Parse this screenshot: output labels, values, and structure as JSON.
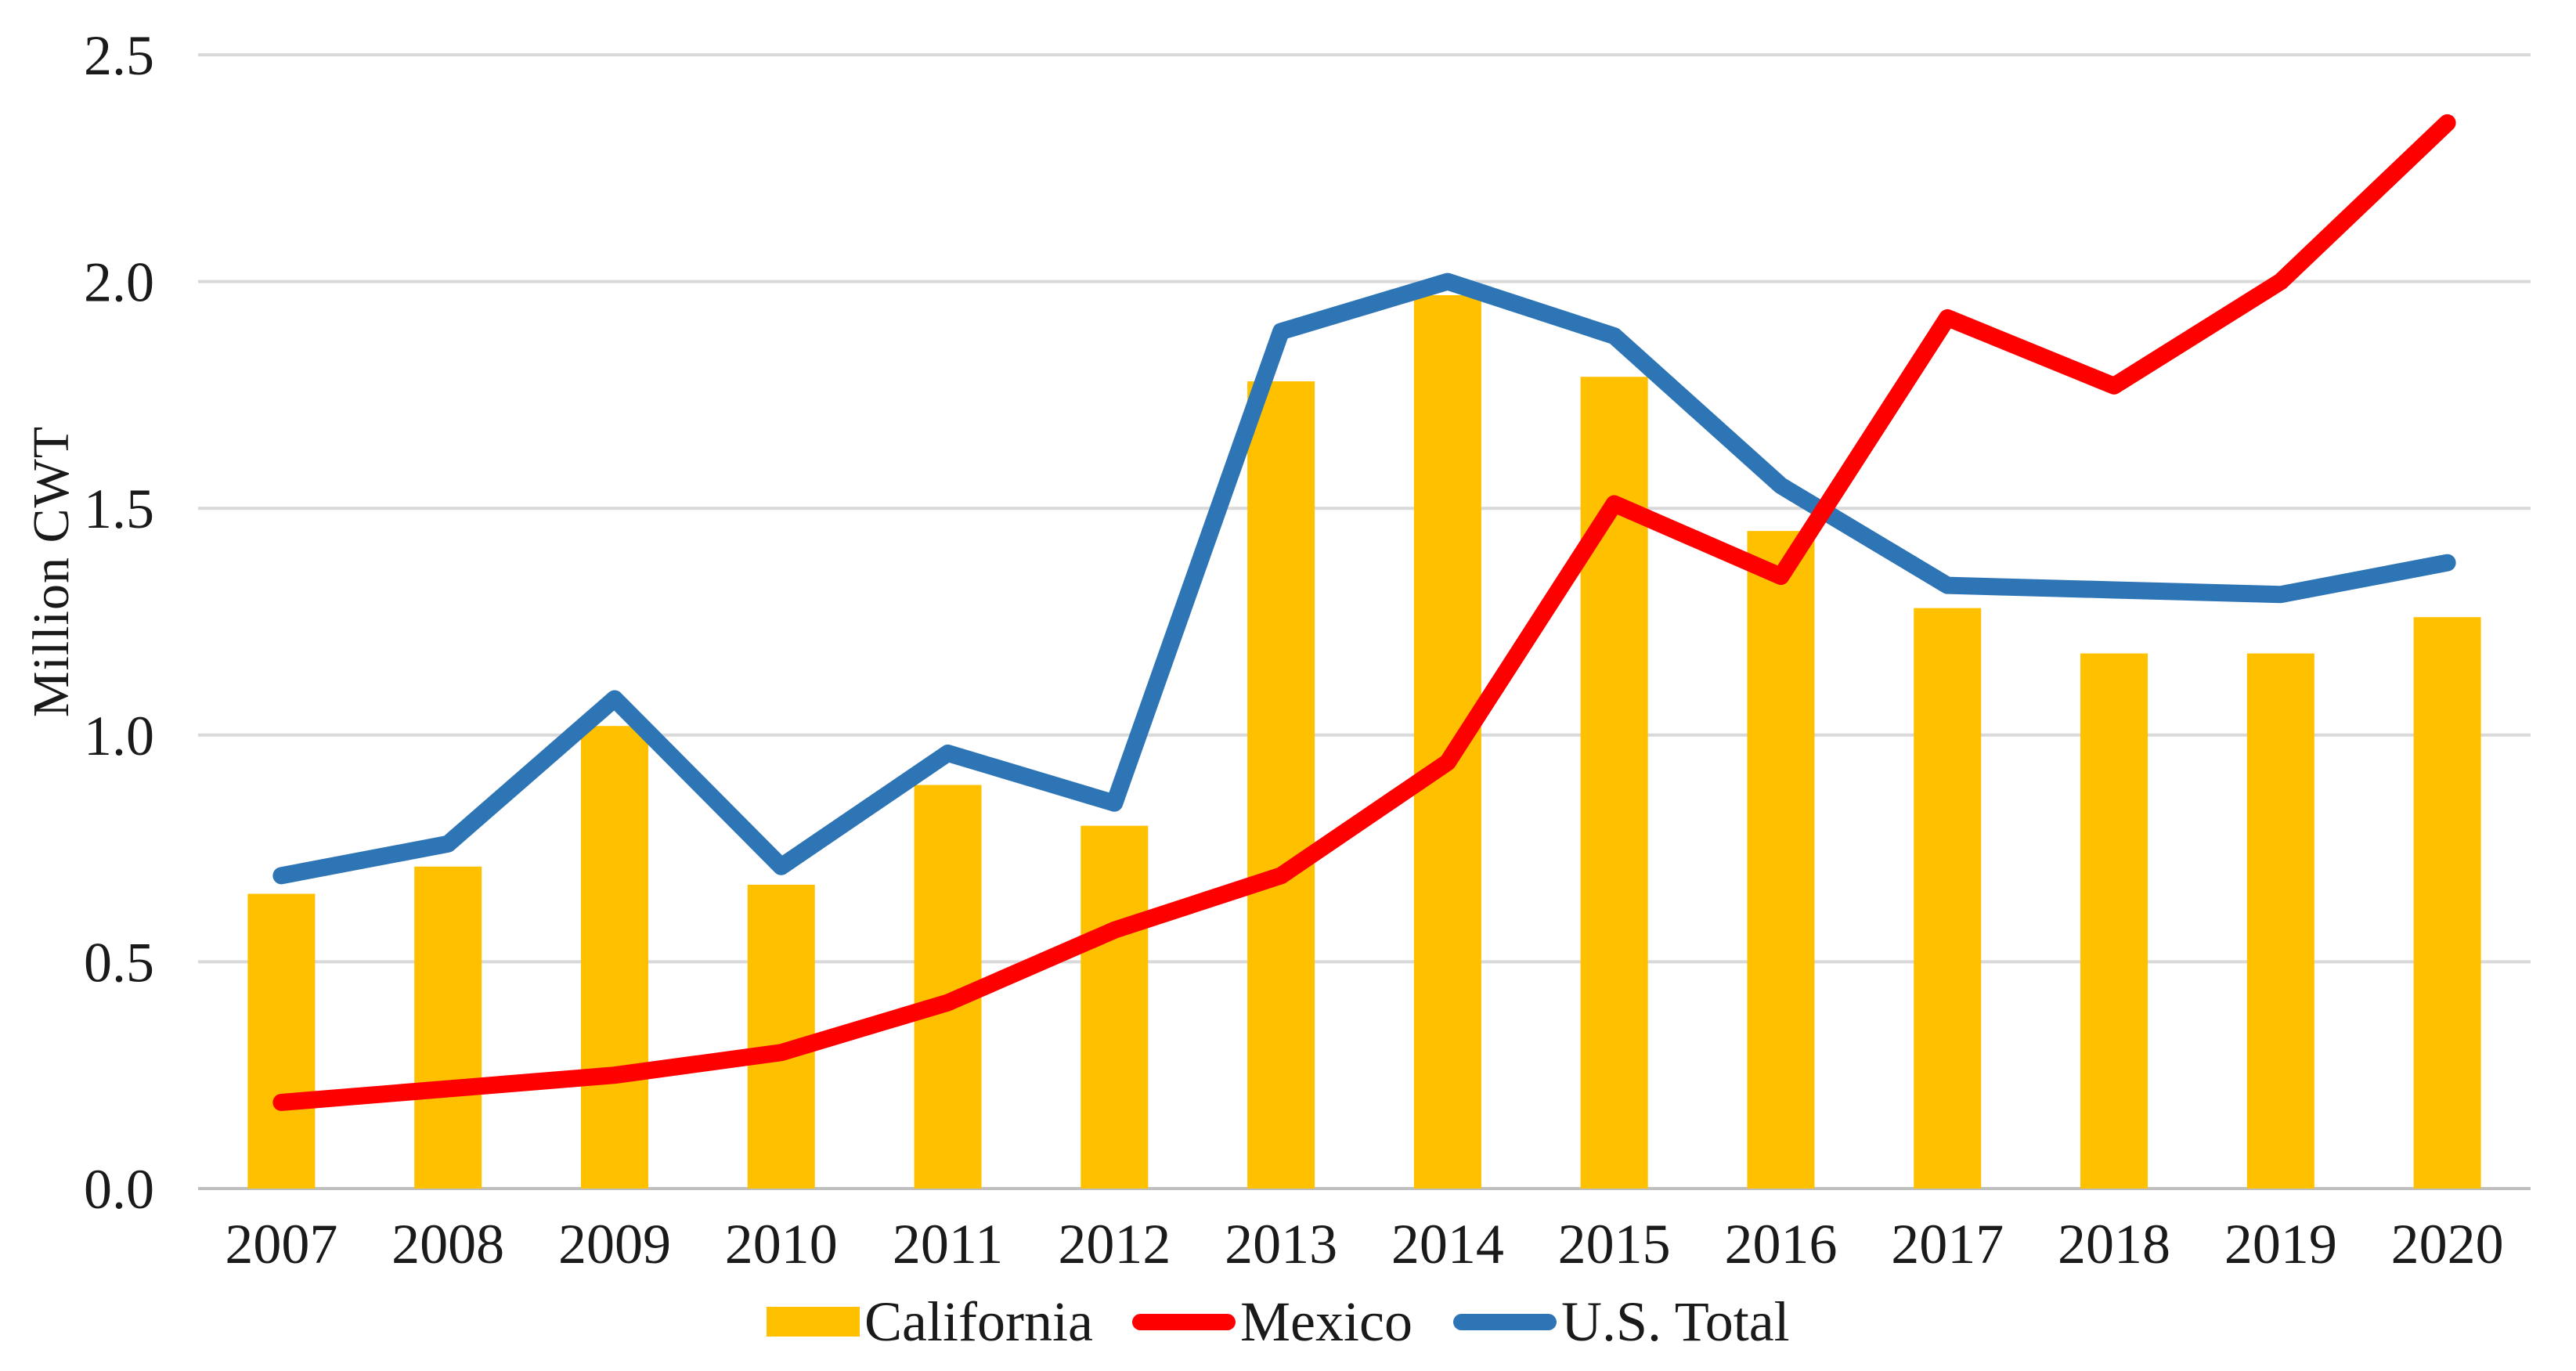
{
  "chart_data": {
    "type": "combo",
    "title": "",
    "ylabel": "Million CWT",
    "xlabel": "",
    "ylim": [
      0,
      2.5
    ],
    "ytick_step": 0.5,
    "ytick_labels": [
      "0.0",
      "0.5",
      "1.0",
      "1.5",
      "2.0",
      "2.5"
    ],
    "grid": "horizontal",
    "legend_position": "bottom",
    "categories": [
      "2007",
      "2008",
      "2009",
      "2010",
      "2011",
      "2012",
      "2013",
      "2014",
      "2015",
      "2016",
      "2017",
      "2018",
      "2019",
      "2020"
    ],
    "series": [
      {
        "name": "California",
        "type": "bar",
        "color": "#FFC000",
        "values": [
          0.65,
          0.71,
          1.02,
          0.67,
          0.89,
          0.8,
          1.78,
          1.97,
          1.79,
          1.45,
          1.28,
          1.18,
          1.18,
          1.26
        ]
      },
      {
        "name": "Mexico",
        "type": "line",
        "color": "#FF0000",
        "values": [
          0.19,
          0.22,
          0.25,
          0.3,
          0.41,
          0.57,
          0.69,
          0.94,
          1.51,
          1.35,
          1.92,
          1.77,
          2.0,
          2.35
        ]
      },
      {
        "name": "U.S. Total",
        "type": "line",
        "color": "#2E75B6",
        "values": [
          0.69,
          0.76,
          1.08,
          0.71,
          0.96,
          0.85,
          1.89,
          2.0,
          1.88,
          1.55,
          1.33,
          1.32,
          1.31,
          1.38
        ]
      }
    ],
    "colors": {
      "gridline": "#D9D9D9",
      "baseline": "#BFBFBF",
      "text": "#1a1a1a"
    }
  }
}
